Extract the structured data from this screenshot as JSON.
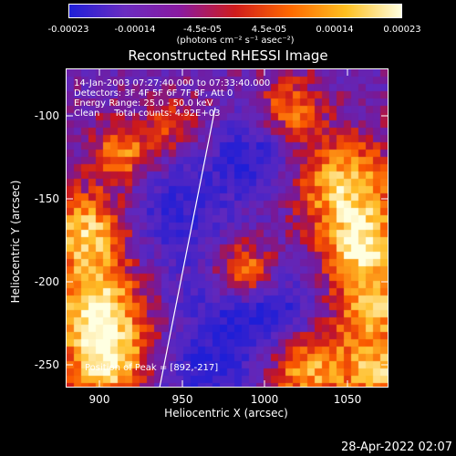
{
  "colorbar": {
    "ticks": [
      "-0.00023",
      "-0.00014",
      "-4.5e-05",
      "4.5e-05",
      "0.00014",
      "0.00023"
    ],
    "units": "(photons cm⁻² s⁻¹ asec⁻²)",
    "colors": [
      "#1f1fd8",
      "#6a2cc0",
      "#8a1aa0",
      "#d01c1c",
      "#ff6a00",
      "#ffc020",
      "#ffffe0"
    ]
  },
  "title": "Reconstructed RHESSI Image",
  "info": {
    "line1": "14-Jan-2003 07:27:40.000 to 07:33:40.000",
    "line2": "Detectors: 3F 4F 5F 6F 7F 8F, Att 0",
    "line3": "Energy Range: 25.0 - 50.0 keV",
    "line4": "Clean     Total counts: 4.92E+03",
    "peak": "Position of Peak = [892,-217]"
  },
  "axes": {
    "xlabel": "Heliocentric X (arcsec)",
    "ylabel": "Heliocentric Y (arcsec)",
    "xticks": [
      "900",
      "950",
      "1000",
      "1050"
    ],
    "yticks": [
      "-100",
      "-150",
      "-200",
      "-250"
    ]
  },
  "timestamp": "28-Apr-2022 02:07",
  "chart_data": {
    "type": "heatmap",
    "title": "Reconstructed RHESSI Image",
    "xlabel": "Heliocentric X (arcsec)",
    "ylabel": "Heliocentric Y (arcsec)",
    "xlim": [
      882,
      1072
    ],
    "ylim": [
      -263,
      -75
    ],
    "value_range": [
      -0.00023,
      0.00023
    ],
    "peak": [
      892,
      -217
    ]
  }
}
